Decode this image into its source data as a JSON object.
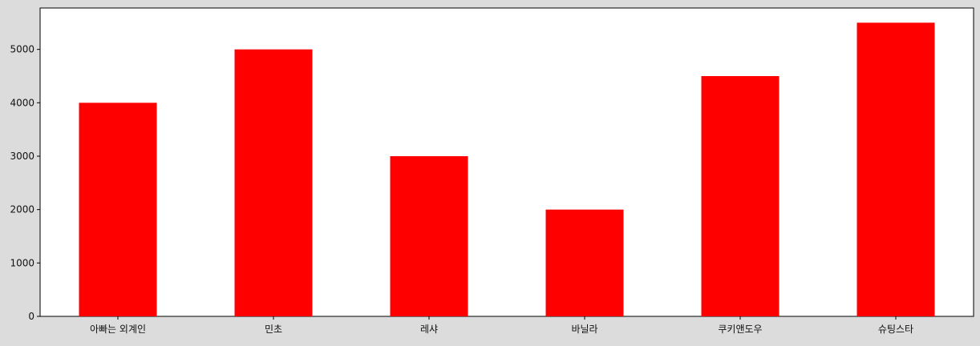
{
  "chart_data": {
    "type": "bar",
    "categories": [
      "아빠는 외계인",
      "민초",
      "레샤",
      "바닐라",
      "쿠키앤도우",
      "슈팅스타"
    ],
    "values": [
      4000,
      5000,
      3000,
      2000,
      4500,
      5500
    ],
    "title": "",
    "xlabel": "",
    "ylabel": "",
    "ylim": [
      0,
      5775
    ],
    "yticks": [
      0,
      1000,
      2000,
      3000,
      4000,
      5000
    ],
    "bar_color": "#ff0000",
    "grid": false,
    "legend": "none"
  }
}
